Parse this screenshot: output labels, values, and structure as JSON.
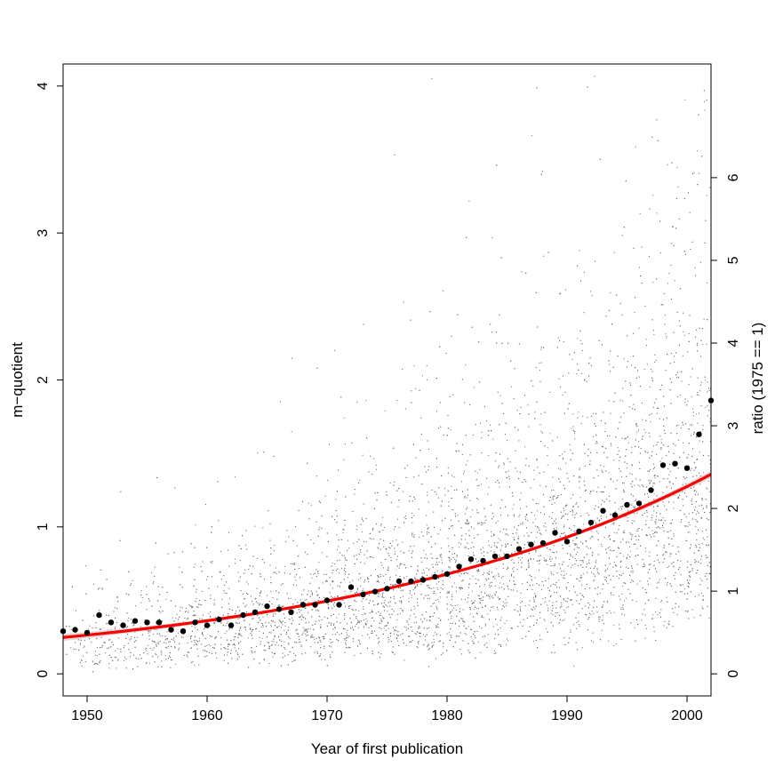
{
  "chart_data": {
    "type": "scatter",
    "title": "",
    "xlabel": "Year of first publication",
    "ylabel": "m−quotient",
    "y2label": "ratio (1975 == 1)",
    "xlim": [
      1948,
      2002
    ],
    "ylim": [
      -0.15,
      4.15
    ],
    "y2lim": [
      -0.2667,
      7.3745
    ],
    "x_ticks": [
      "1950",
      "1960",
      "1970",
      "1980",
      "1990",
      "2000"
    ],
    "y_ticks": [
      "0",
      "1",
      "2",
      "3",
      "4"
    ],
    "y2_ticks": [
      "0",
      "1",
      "2",
      "3",
      "4",
      "5",
      "6"
    ],
    "grid": false,
    "legend": "none",
    "colors": {
      "fit_line": "#ff0000",
      "means": "#000000",
      "raw_points": "#6b6b6b",
      "confidence_band": "#bfbfbf"
    },
    "series": [
      {
        "kind": "yearly-means",
        "x": [
          1948,
          1949,
          1950,
          1951,
          1952,
          1953,
          1954,
          1955,
          1956,
          1957,
          1958,
          1959,
          1960,
          1961,
          1962,
          1963,
          1964,
          1965,
          1966,
          1967,
          1968,
          1969,
          1970,
          1971,
          1972,
          1973,
          1974,
          1975,
          1976,
          1977,
          1978,
          1979,
          1980,
          1981,
          1982,
          1983,
          1984,
          1985,
          1986,
          1987,
          1988,
          1989,
          1990,
          1991,
          1992,
          1993,
          1994,
          1995,
          1996,
          1997,
          1998,
          1999,
          2000,
          2001,
          2002
        ],
        "y": [
          0.29,
          0.3,
          0.28,
          0.4,
          0.35,
          0.33,
          0.36,
          0.35,
          0.35,
          0.3,
          0.29,
          0.35,
          0.33,
          0.37,
          0.33,
          0.4,
          0.42,
          0.46,
          0.44,
          0.42,
          0.47,
          0.47,
          0.5,
          0.47,
          0.59,
          0.54,
          0.56,
          0.58,
          0.63,
          0.63,
          0.64,
          0.66,
          0.68,
          0.73,
          0.78,
          0.77,
          0.8,
          0.8,
          0.85,
          0.88,
          0.89,
          0.96,
          0.9,
          0.97,
          1.03,
          1.11,
          1.08,
          1.15,
          1.16,
          1.25,
          1.42,
          1.43,
          1.4,
          1.63,
          1.86
        ]
      },
      {
        "kind": "exponential-fit",
        "x": [
          1948,
          1955,
          1960,
          1965,
          1970,
          1975,
          1980,
          1985,
          1990,
          1995,
          2000,
          2002
        ],
        "y": [
          0.26,
          0.32,
          0.37,
          0.43,
          0.5,
          0.58,
          0.68,
          0.8,
          0.95,
          1.14,
          1.38,
          1.49
        ]
      }
    ],
    "raw_scatter": {
      "approx_count": 6000,
      "x_range": [
        1948,
        2002
      ],
      "y_range": [
        -0.1,
        4.1
      ]
    }
  }
}
